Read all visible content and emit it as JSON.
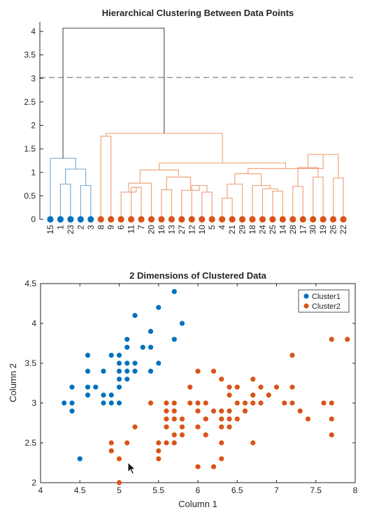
{
  "chart_data": [
    {
      "type": "dendrogram",
      "title": "Hierarchical Clustering Between Data Points",
      "ylim": [
        0,
        4.2
      ],
      "yticks": [
        "0",
        "0.5",
        "1",
        "1.5",
        "2",
        "2.5",
        "3",
        "3.5",
        "4"
      ],
      "leaf_order": [
        "15",
        "1",
        "23",
        "2",
        "3",
        "8",
        "9",
        "6",
        "11",
        "7",
        "20",
        "16",
        "13",
        "27",
        "12",
        "10",
        "5",
        "4",
        "21",
        "29",
        "18",
        "24",
        "25",
        "14",
        "28",
        "17",
        "30",
        "19",
        "26",
        "22"
      ],
      "threshold": 3.02,
      "colors": {
        "cluster1": "#0072BD",
        "cluster2": "#D95319",
        "link1": "#7FAFD8",
        "link2": "#EFA57F",
        "root": "#595959"
      },
      "merges": [
        [
          1,
          2,
          0.75,
          1
        ],
        [
          3,
          4,
          0.72,
          1
        ],
        [
          30,
          31,
          1.07,
          1
        ],
        [
          0,
          32,
          1.3,
          1
        ],
        [
          5,
          6,
          1.77,
          2
        ],
        [
          8,
          9,
          0.68,
          2
        ],
        [
          7,
          35,
          0.58,
          2
        ],
        [
          36,
          10,
          0.77,
          2
        ],
        [
          11,
          12,
          0.63,
          2
        ],
        [
          15,
          16,
          0.58,
          2
        ],
        [
          14,
          39,
          0.72,
          2
        ],
        [
          13,
          40,
          0.62,
          2
        ],
        [
          41,
          38,
          0.9,
          2
        ],
        [
          37,
          42,
          1.05,
          2
        ],
        [
          17,
          18,
          0.45,
          2
        ],
        [
          44,
          19,
          0.75,
          2
        ],
        [
          22,
          23,
          0.6,
          2
        ],
        [
          21,
          46,
          0.65,
          2
        ],
        [
          20,
          47,
          0.72,
          2
        ],
        [
          45,
          48,
          0.97,
          2
        ],
        [
          24,
          25,
          0.7,
          2
        ],
        [
          26,
          27,
          0.9,
          2
        ],
        [
          28,
          29,
          0.88,
          2
        ],
        [
          50,
          51,
          1.1,
          2
        ],
        [
          52,
          53,
          1.38,
          2
        ],
        [
          49,
          54,
          1.08,
          2
        ],
        [
          43,
          55,
          1.2,
          2
        ],
        [
          34,
          56,
          1.83,
          2
        ],
        [
          33,
          57,
          4.07,
          0
        ]
      ]
    },
    {
      "type": "scatter",
      "title": "2 Dimensions of Clustered Data",
      "xlabel": "Column 1",
      "ylabel": "Column 2",
      "xlim": [
        4,
        8
      ],
      "ylim": [
        2,
        4.5
      ],
      "xticks": [
        "4",
        "4.5",
        "5",
        "5.5",
        "6",
        "6.5",
        "7",
        "7.5",
        "8"
      ],
      "yticks": [
        "2",
        "2.5",
        "3",
        "3.5",
        "4",
        "4.5"
      ],
      "legend_position": "top-right",
      "series": [
        {
          "name": "Cluster1",
          "color": "#0072BD",
          "points": [
            [
              4.3,
              3.0
            ],
            [
              4.4,
              2.9
            ],
            [
              4.4,
              3.0
            ],
            [
              4.4,
              3.2
            ],
            [
              4.5,
              2.3
            ],
            [
              4.6,
              3.1
            ],
            [
              4.6,
              3.2
            ],
            [
              4.6,
              3.4
            ],
            [
              4.6,
              3.6
            ],
            [
              4.7,
              3.2
            ],
            [
              4.8,
              3.0
            ],
            [
              4.8,
              3.1
            ],
            [
              4.8,
              3.4
            ],
            [
              4.9,
              3.0
            ],
            [
              4.9,
              3.1
            ],
            [
              4.9,
              3.6
            ],
            [
              5.0,
              3.0
            ],
            [
              5.0,
              3.2
            ],
            [
              5.0,
              3.3
            ],
            [
              5.0,
              3.4
            ],
            [
              5.0,
              3.5
            ],
            [
              5.0,
              3.6
            ],
            [
              5.1,
              3.3
            ],
            [
              5.1,
              3.4
            ],
            [
              5.1,
              3.5
            ],
            [
              5.1,
              3.7
            ],
            [
              5.1,
              3.8
            ],
            [
              5.2,
              3.4
            ],
            [
              5.2,
              3.5
            ],
            [
              5.2,
              4.1
            ],
            [
              5.3,
              3.7
            ],
            [
              5.4,
              3.4
            ],
            [
              5.4,
              3.7
            ],
            [
              5.4,
              3.9
            ],
            [
              5.5,
              3.5
            ],
            [
              5.5,
              4.2
            ],
            [
              5.7,
              3.8
            ],
            [
              5.7,
              4.4
            ],
            [
              5.8,
              4.0
            ]
          ]
        },
        {
          "name": "Cluster2",
          "color": "#D95319",
          "points": [
            [
              4.9,
              2.4
            ],
            [
              4.9,
              2.5
            ],
            [
              5.0,
              2.0
            ],
            [
              5.0,
              2.3
            ],
            [
              5.1,
              2.5
            ],
            [
              5.2,
              2.7
            ],
            [
              5.4,
              3.0
            ],
            [
              5.5,
              2.3
            ],
            [
              5.5,
              2.4
            ],
            [
              5.5,
              2.5
            ],
            [
              5.6,
              2.5
            ],
            [
              5.6,
              2.7
            ],
            [
              5.6,
              2.8
            ],
            [
              5.6,
              2.9
            ],
            [
              5.6,
              3.0
            ],
            [
              5.7,
              2.5
            ],
            [
              5.7,
              2.6
            ],
            [
              5.7,
              2.8
            ],
            [
              5.7,
              2.9
            ],
            [
              5.7,
              3.0
            ],
            [
              5.8,
              2.6
            ],
            [
              5.8,
              2.7
            ],
            [
              5.8,
              2.8
            ],
            [
              5.9,
              3.0
            ],
            [
              5.9,
              3.2
            ],
            [
              6.0,
              2.2
            ],
            [
              6.0,
              2.7
            ],
            [
              6.0,
              2.9
            ],
            [
              6.0,
              3.0
            ],
            [
              6.0,
              3.4
            ],
            [
              6.1,
              2.6
            ],
            [
              6.1,
              2.8
            ],
            [
              6.1,
              3.0
            ],
            [
              6.2,
              2.2
            ],
            [
              6.2,
              2.9
            ],
            [
              6.2,
              3.4
            ],
            [
              6.3,
              2.3
            ],
            [
              6.3,
              2.5
            ],
            [
              6.3,
              2.7
            ],
            [
              6.3,
              2.8
            ],
            [
              6.3,
              2.9
            ],
            [
              6.3,
              3.3
            ],
            [
              6.4,
              2.7
            ],
            [
              6.4,
              2.8
            ],
            [
              6.4,
              2.9
            ],
            [
              6.4,
              3.1
            ],
            [
              6.4,
              3.2
            ],
            [
              6.5,
              2.8
            ],
            [
              6.5,
              3.0
            ],
            [
              6.5,
              3.2
            ],
            [
              6.6,
              2.9
            ],
            [
              6.6,
              3.0
            ],
            [
              6.7,
              2.5
            ],
            [
              6.7,
              3.0
            ],
            [
              6.7,
              3.1
            ],
            [
              6.7,
              3.3
            ],
            [
              6.8,
              3.0
            ],
            [
              6.8,
              3.2
            ],
            [
              6.9,
              3.1
            ],
            [
              7.0,
              3.2
            ],
            [
              7.1,
              3.0
            ],
            [
              7.2,
              3.0
            ],
            [
              7.2,
              3.2
            ],
            [
              7.2,
              3.6
            ],
            [
              7.3,
              2.9
            ],
            [
              7.4,
              2.8
            ],
            [
              7.6,
              3.0
            ],
            [
              7.7,
              2.6
            ],
            [
              7.7,
              2.8
            ],
            [
              7.7,
              3.0
            ],
            [
              7.7,
              3.8
            ],
            [
              7.9,
              3.8
            ]
          ]
        }
      ]
    }
  ]
}
